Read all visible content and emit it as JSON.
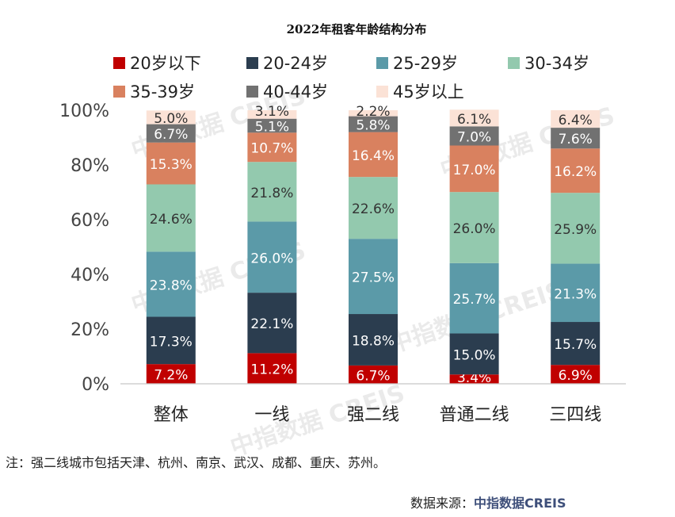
{
  "chart_data": {
    "type": "bar",
    "stacked": true,
    "title": "2022年租客年龄结构分布",
    "categories": [
      "整体",
      "一线",
      "强二线",
      "普通二线",
      "三四线"
    ],
    "series": [
      {
        "name": "20岁以下",
        "color": "#c00000",
        "values": [
          7.2,
          11.2,
          6.7,
          3.4,
          6.9
        ],
        "labels": [
          "7.2%",
          "11.2%",
          "6.7%",
          "3.4%",
          "6.9%"
        ]
      },
      {
        "name": "20-24岁",
        "color": "#2b3d4f",
        "values": [
          17.3,
          22.1,
          18.8,
          15.0,
          15.7
        ],
        "labels": [
          "17.3%",
          "22.1%",
          "18.8%",
          "15.0%",
          "15.7%"
        ]
      },
      {
        "name": "25-29岁",
        "color": "#5b9aa8",
        "values": [
          23.8,
          26.0,
          27.5,
          25.7,
          21.3
        ],
        "labels": [
          "23.8%",
          "26.0%",
          "27.5%",
          "25.7%",
          "21.3%"
        ]
      },
      {
        "name": "30-34岁",
        "color": "#93c9ae",
        "values": [
          24.6,
          21.8,
          22.6,
          26.0,
          25.9
        ],
        "labels": [
          "24.6%",
          "21.8%",
          "22.6%",
          "26.0%",
          "25.9%"
        ]
      },
      {
        "name": "35-39岁",
        "color": "#d9815f",
        "values": [
          15.3,
          10.7,
          16.4,
          17.0,
          16.2
        ],
        "labels": [
          "15.3%",
          "10.7%",
          "16.4%",
          "17.0%",
          "16.2%"
        ]
      },
      {
        "name": "40-44岁",
        "color": "#717171",
        "values": [
          6.7,
          5.1,
          5.8,
          7.0,
          7.6
        ],
        "labels": [
          "6.7%",
          "5.1%",
          "5.8%",
          "7.0%",
          "7.6%"
        ]
      },
      {
        "name": "45岁以上",
        "color": "#fbe2d6",
        "values": [
          5.0,
          3.1,
          2.2,
          6.1,
          6.4
        ],
        "labels": [
          "5.0%",
          "3.1%",
          "2.2%",
          "6.1%",
          "6.4%"
        ]
      }
    ],
    "ylim": [
      0,
      100
    ],
    "yticks": [
      0,
      20,
      40,
      60,
      80,
      100
    ],
    "ytick_labels": [
      "0%",
      "20%",
      "40%",
      "60%",
      "80%",
      "100%"
    ],
    "xlabel": "",
    "ylabel": "",
    "legend_position": "top",
    "grid": false
  },
  "watermark_text": "中指数据 CREIS",
  "note": "注：强二线城市包括天津、杭州、南京、武汉、成都、重庆、苏州。",
  "source_label": "数据来源：",
  "source_brand": "中指数据CREIS"
}
